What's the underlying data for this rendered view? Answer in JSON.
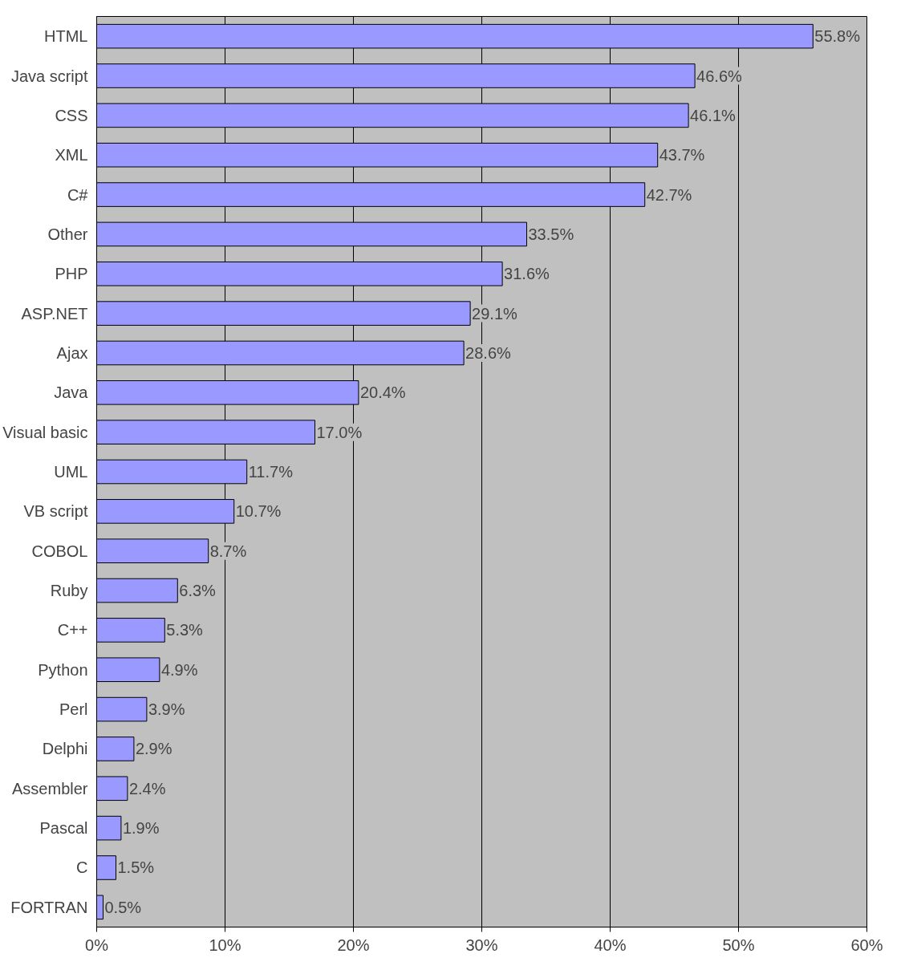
{
  "chart_data": {
    "type": "bar",
    "orientation": "horizontal",
    "categories": [
      "HTML",
      "Java script",
      "CSS",
      "XML",
      "C#",
      "Other",
      "PHP",
      "ASP.NET",
      "Ajax",
      "Java",
      "Visual basic",
      "UML",
      "VB script",
      "COBOL",
      "Ruby",
      "C++",
      "Python",
      "Perl",
      "Delphi",
      "Assembler",
      "Pascal",
      "C",
      "FORTRAN"
    ],
    "values": [
      55.8,
      46.6,
      46.1,
      43.7,
      42.7,
      33.5,
      31.6,
      29.1,
      28.6,
      20.4,
      17.0,
      11.7,
      10.7,
      8.7,
      6.3,
      5.3,
      4.9,
      3.9,
      2.9,
      2.4,
      1.9,
      1.5,
      0.5
    ],
    "value_labels": [
      "55.8%",
      "46.6%",
      "46.1%",
      "43.7%",
      "42.7%",
      "33.5%",
      "31.6%",
      "29.1%",
      "28.6%",
      "20.4%",
      "17.0%",
      "11.7%",
      "10.7%",
      "8.7%",
      "6.3%",
      "5.3%",
      "4.9%",
      "3.9%",
      "2.9%",
      "2.4%",
      "1.9%",
      "1.5%",
      "0.5%"
    ],
    "color": "#9999ff",
    "xlim": [
      0,
      60
    ],
    "xticks": [
      {
        "value": 0,
        "label": "0%"
      },
      {
        "value": 10,
        "label": "10%"
      },
      {
        "value": 20,
        "label": "20%"
      },
      {
        "value": 30,
        "label": "30%"
      },
      {
        "value": 40,
        "label": "40%"
      },
      {
        "value": 50,
        "label": "50%"
      },
      {
        "value": 60,
        "label": "60%"
      }
    ],
    "grid": "x"
  }
}
